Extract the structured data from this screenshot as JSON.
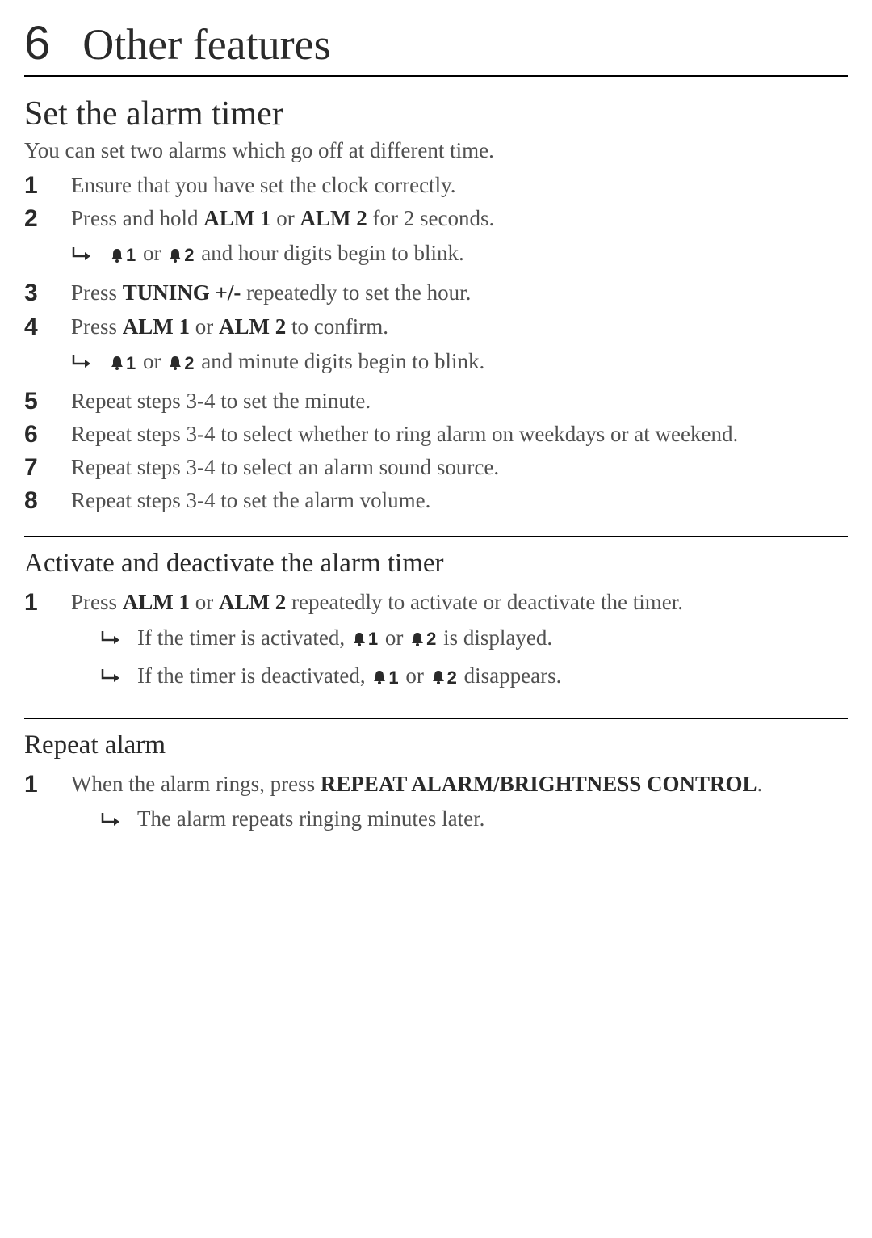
{
  "chapter": {
    "number": "6",
    "title": "Other features"
  },
  "section1": {
    "title": "Set the alarm timer",
    "intro": "You can set two alarms which go off at different time.",
    "steps": [
      {
        "num": "1",
        "parts": [
          {
            "t": "Ensure that you have set the clock correctly."
          }
        ]
      },
      {
        "num": "2",
        "parts": [
          {
            "t": "Press and hold "
          },
          {
            "t": "ALM 1",
            "b": true
          },
          {
            "t": " or "
          },
          {
            "t": "ALM 2",
            "b": true
          },
          {
            "t": " for 2 seconds."
          }
        ],
        "result": {
          "parts": [
            {
              "bell": "1"
            },
            {
              "t": " or "
            },
            {
              "bell": "2"
            },
            {
              "t": " and hour digits begin to blink."
            }
          ]
        }
      },
      {
        "num": "3",
        "parts": [
          {
            "t": "Press "
          },
          {
            "t": "TUNING +/-",
            "b": true
          },
          {
            "t": " repeatedly to set the hour."
          }
        ]
      },
      {
        "num": "4",
        "parts": [
          {
            "t": "Press "
          },
          {
            "t": "ALM 1",
            "b": true
          },
          {
            "t": " or "
          },
          {
            "t": "ALM 2",
            "b": true
          },
          {
            "t": " to confirm."
          }
        ],
        "result": {
          "parts": [
            {
              "bell": "1"
            },
            {
              "t": " or "
            },
            {
              "bell": "2"
            },
            {
              "t": " and minute digits begin to blink."
            }
          ]
        }
      },
      {
        "num": "5",
        "parts": [
          {
            "t": "Repeat steps 3-4 to set the minute."
          }
        ]
      },
      {
        "num": "6",
        "parts": [
          {
            "t": "Repeat steps 3-4 to select whether to ring alarm on weekdays or at weekend."
          }
        ]
      },
      {
        "num": "7",
        "parts": [
          {
            "t": "Repeat steps 3-4 to select an alarm sound source."
          }
        ]
      },
      {
        "num": "8",
        "parts": [
          {
            "t": "Repeat steps 3-4 to set the alarm volume."
          }
        ]
      }
    ]
  },
  "section2": {
    "title": "Activate and deactivate the alarm timer",
    "steps": [
      {
        "num": "1",
        "parts": [
          {
            "t": "Press "
          },
          {
            "t": "ALM 1",
            "b": true
          },
          {
            "t": " or "
          },
          {
            "t": "ALM 2",
            "b": true
          },
          {
            "t": " repeatedly to activate or deactivate the timer."
          }
        ],
        "results": [
          {
            "parts": [
              {
                "t": "If the timer is activated, "
              },
              {
                "bell": "1"
              },
              {
                "t": " or "
              },
              {
                "bell": "2"
              },
              {
                "t": " is displayed."
              }
            ]
          },
          {
            "parts": [
              {
                "t": "If the timer is deactivated, "
              },
              {
                "bell": "1"
              },
              {
                "t": " or "
              },
              {
                "bell": "2"
              },
              {
                "t": " disappears."
              }
            ]
          }
        ]
      }
    ]
  },
  "section3": {
    "title": "Repeat alarm",
    "steps": [
      {
        "num": "1",
        "parts": [
          {
            "t": "When the alarm rings, press "
          },
          {
            "t": "REPEAT ALARM/BRIGHTNESS CONTROL",
            "b": true
          },
          {
            "t": "."
          }
        ],
        "results": [
          {
            "parts": [
              {
                "t": "The alarm repeats ringing minutes later."
              }
            ]
          }
        ]
      }
    ]
  }
}
